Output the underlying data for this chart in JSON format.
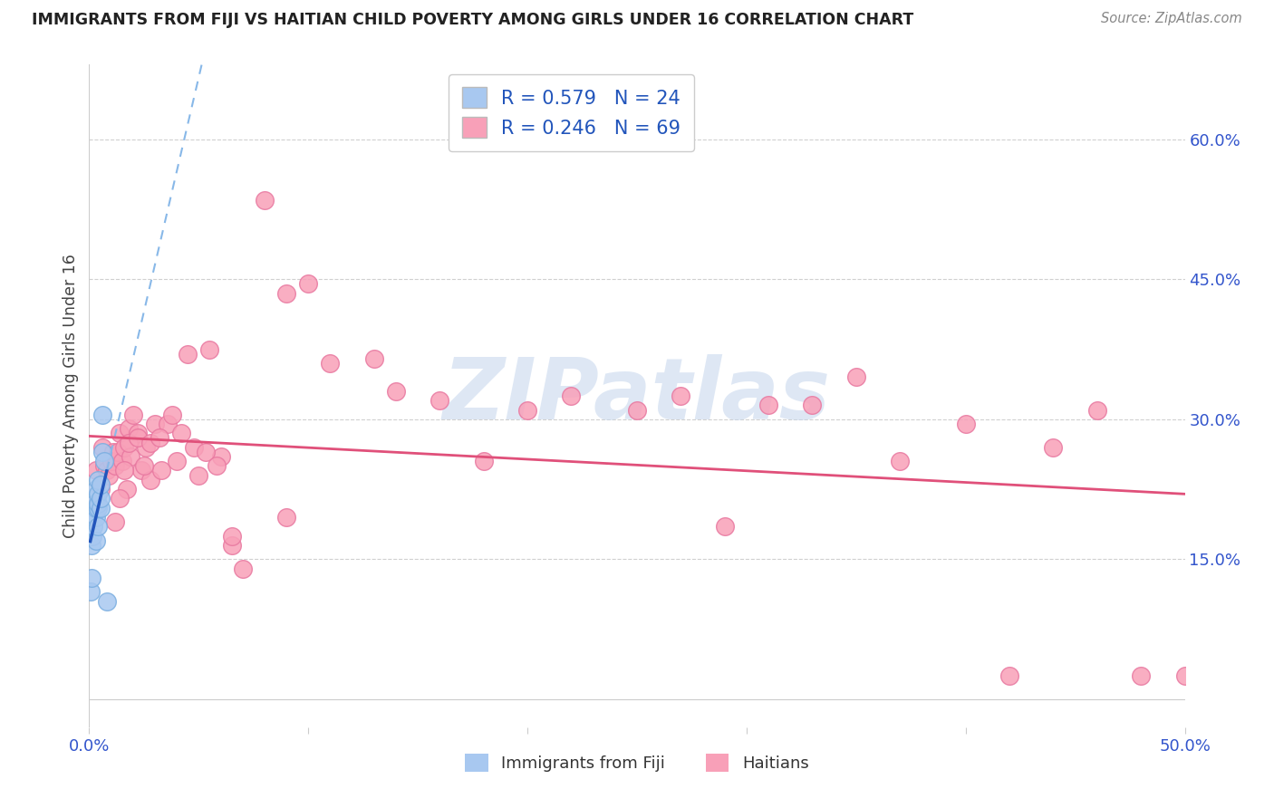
{
  "title": "IMMIGRANTS FROM FIJI VS HAITIAN CHILD POVERTY AMONG GIRLS UNDER 16 CORRELATION CHART",
  "source": "Source: ZipAtlas.com",
  "ylabel": "Child Poverty Among Girls Under 16",
  "x_min": 0.0,
  "x_max": 0.5,
  "y_min": -0.03,
  "y_max": 0.68,
  "fiji_color": "#a8c8f0",
  "fiji_edge": "#7aaee0",
  "haiti_color": "#f8a0b8",
  "haiti_edge": "#e878a0",
  "fiji_line_color": "#2255bb",
  "fiji_dash_color": "#88b8e8",
  "haiti_line_color": "#e0507a",
  "legend_label_fiji": "Immigrants from Fiji",
  "legend_label_haiti": "Haitians",
  "watermark": "ZIPatlas",
  "right_y_ticks": [
    0.15,
    0.3,
    0.45,
    0.6
  ],
  "right_y_labels": [
    "15.0%",
    "30.0%",
    "45.0%",
    "60.0%"
  ],
  "fiji_R": "0.579",
  "fiji_N": "24",
  "haiti_R": "0.246",
  "haiti_N": "69",
  "fiji_x": [
    0.0005,
    0.001,
    0.001,
    0.0015,
    0.002,
    0.002,
    0.002,
    0.0025,
    0.003,
    0.003,
    0.003,
    0.003,
    0.004,
    0.004,
    0.004,
    0.004,
    0.004,
    0.005,
    0.005,
    0.005,
    0.006,
    0.006,
    0.007,
    0.008
  ],
  "fiji_y": [
    0.115,
    0.13,
    0.165,
    0.175,
    0.185,
    0.195,
    0.205,
    0.21,
    0.17,
    0.195,
    0.205,
    0.225,
    0.185,
    0.205,
    0.21,
    0.22,
    0.235,
    0.205,
    0.215,
    0.23,
    0.265,
    0.305,
    0.255,
    0.105
  ],
  "haiti_x": [
    0.003,
    0.005,
    0.006,
    0.007,
    0.008,
    0.009,
    0.01,
    0.011,
    0.012,
    0.013,
    0.014,
    0.015,
    0.016,
    0.017,
    0.018,
    0.019,
    0.02,
    0.022,
    0.024,
    0.026,
    0.028,
    0.03,
    0.033,
    0.036,
    0.04,
    0.045,
    0.05,
    0.055,
    0.06,
    0.065,
    0.07,
    0.08,
    0.09,
    0.1,
    0.11,
    0.13,
    0.14,
    0.16,
    0.18,
    0.2,
    0.22,
    0.25,
    0.27,
    0.29,
    0.31,
    0.33,
    0.35,
    0.37,
    0.4,
    0.42,
    0.44,
    0.46,
    0.48,
    0.5,
    0.012,
    0.014,
    0.016,
    0.018,
    0.022,
    0.025,
    0.028,
    0.032,
    0.038,
    0.042,
    0.048,
    0.053,
    0.058,
    0.065,
    0.09
  ],
  "haiti_y": [
    0.245,
    0.225,
    0.27,
    0.25,
    0.245,
    0.24,
    0.255,
    0.265,
    0.25,
    0.265,
    0.285,
    0.255,
    0.27,
    0.225,
    0.29,
    0.26,
    0.305,
    0.285,
    0.245,
    0.27,
    0.235,
    0.295,
    0.245,
    0.295,
    0.255,
    0.37,
    0.24,
    0.375,
    0.26,
    0.165,
    0.14,
    0.535,
    0.435,
    0.445,
    0.36,
    0.365,
    0.33,
    0.32,
    0.255,
    0.31,
    0.325,
    0.31,
    0.325,
    0.185,
    0.315,
    0.315,
    0.345,
    0.255,
    0.295,
    0.025,
    0.27,
    0.31,
    0.025,
    0.025,
    0.19,
    0.215,
    0.245,
    0.275,
    0.28,
    0.25,
    0.275,
    0.28,
    0.305,
    0.285,
    0.27,
    0.265,
    0.25,
    0.175,
    0.195
  ]
}
